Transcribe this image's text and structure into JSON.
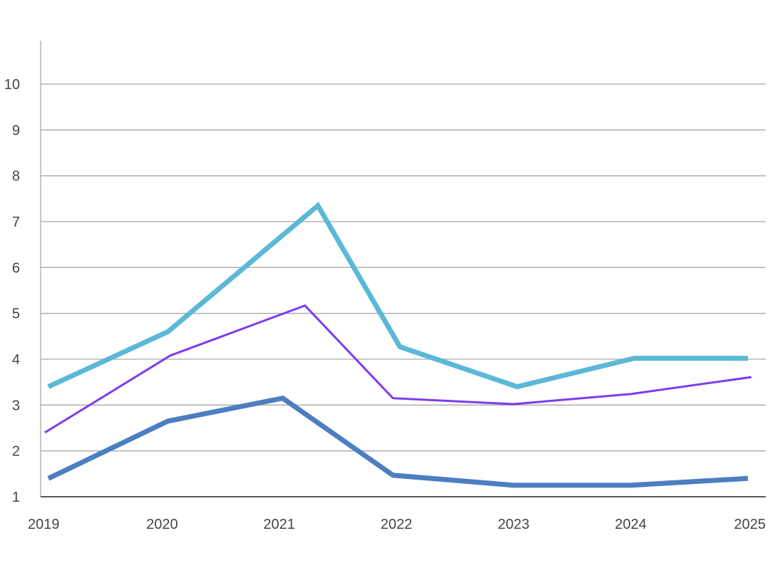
{
  "chart_data": {
    "type": "line",
    "title": "",
    "xlabel": "",
    "ylabel": "",
    "x_ticks": [
      "2019",
      "2020",
      "2021",
      "2022",
      "2023",
      "2024",
      "2025"
    ],
    "y_ticks": [
      1,
      2,
      3,
      4,
      5,
      6,
      7,
      8,
      9,
      10
    ],
    "xlim": [
      2019,
      2025
    ],
    "ylim": [
      1,
      10.9
    ],
    "grid": "horizontal",
    "legend": "none",
    "series": [
      {
        "color": "#5bb8d6",
        "line_weight": "thick",
        "points": [
          [
            2019.03,
            3.4
          ],
          [
            2020.05,
            4.6
          ],
          [
            2021.33,
            7.35
          ],
          [
            2022.03,
            4.27
          ],
          [
            2023.03,
            3.4
          ],
          [
            2024.03,
            4.02
          ],
          [
            2025.0,
            4.02
          ]
        ]
      },
      {
        "color": "#7b3cf0",
        "line_weight": "thin",
        "points": [
          [
            2019.0,
            2.4
          ],
          [
            2020.07,
            4.08
          ],
          [
            2021.22,
            5.17
          ],
          [
            2021.97,
            3.15
          ],
          [
            2023.0,
            3.02
          ],
          [
            2024.0,
            3.24
          ],
          [
            2025.03,
            3.61
          ]
        ]
      },
      {
        "color": "#4c7ec0",
        "line_weight": "thick",
        "points": [
          [
            2019.03,
            1.4
          ],
          [
            2020.05,
            2.65
          ],
          [
            2021.03,
            3.15
          ],
          [
            2021.97,
            1.47
          ],
          [
            2023.0,
            1.25
          ],
          [
            2024.0,
            1.25
          ],
          [
            2025.0,
            1.4
          ]
        ]
      }
    ]
  }
}
